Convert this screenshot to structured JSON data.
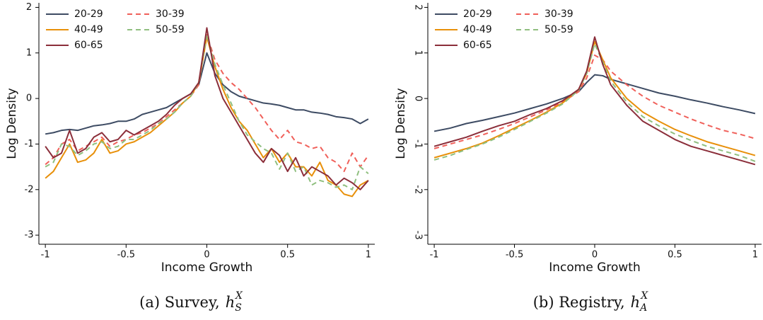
{
  "chart_data": [
    {
      "type": "line",
      "xlabel": "Income Growth",
      "ylabel": "Log Density",
      "caption": "(a) Survey,",
      "caption_math": {
        "base": "h",
        "sub": "S",
        "sup": "X"
      },
      "xlim": [
        -1.04,
        1.04
      ],
      "ylim": [
        -3.2,
        2.1
      ],
      "xticks": [
        -1,
        -0.5,
        0,
        0.5,
        1
      ],
      "yticks": [
        -3,
        -2,
        -1,
        0,
        1,
        2
      ],
      "ytick_label_rotation": 0,
      "legend": "upper left",
      "x": [
        -1,
        -0.95,
        -0.9,
        -0.85,
        -0.8,
        -0.75,
        -0.7,
        -0.65,
        -0.6,
        -0.55,
        -0.5,
        -0.45,
        -0.4,
        -0.35,
        -0.3,
        -0.25,
        -0.2,
        -0.15,
        -0.1,
        -0.05,
        0,
        0.05,
        0.1,
        0.15,
        0.2,
        0.25,
        0.3,
        0.35,
        0.4,
        0.45,
        0.5,
        0.55,
        0.6,
        0.65,
        0.7,
        0.75,
        0.8,
        0.85,
        0.9,
        0.95,
        1
      ],
      "series": [
        {
          "name": "20-29",
          "color": "#3d4b63",
          "dashed": false,
          "values": [
            -0.78,
            -0.75,
            -0.7,
            -0.68,
            -0.7,
            -0.65,
            -0.6,
            -0.58,
            -0.55,
            -0.5,
            -0.5,
            -0.45,
            -0.35,
            -0.3,
            -0.25,
            -0.2,
            -0.1,
            0.0,
            0.1,
            0.3,
            1.0,
            0.55,
            0.3,
            0.15,
            0.05,
            0.0,
            -0.05,
            -0.1,
            -0.12,
            -0.15,
            -0.2,
            -0.25,
            -0.25,
            -0.3,
            -0.32,
            -0.35,
            -0.4,
            -0.42,
            -0.45,
            -0.55,
            -0.45
          ]
        },
        {
          "name": "30-39",
          "color": "#f0605a",
          "dashed": true,
          "values": [
            -1.45,
            -1.3,
            -1.0,
            -0.9,
            -1.15,
            -1.05,
            -0.95,
            -0.85,
            -1.05,
            -0.95,
            -0.9,
            -0.8,
            -0.75,
            -0.65,
            -0.55,
            -0.4,
            -0.25,
            -0.1,
            0.05,
            0.3,
            1.4,
            0.85,
            0.55,
            0.35,
            0.2,
            0.0,
            -0.2,
            -0.45,
            -0.7,
            -0.9,
            -0.7,
            -0.95,
            -1.0,
            -1.1,
            -1.05,
            -1.3,
            -1.4,
            -1.6,
            -1.2,
            -1.5,
            -1.25
          ]
        },
        {
          "name": "40-49",
          "color": "#e8900a",
          "dashed": false,
          "values": [
            -1.75,
            -1.6,
            -1.3,
            -1.0,
            -1.4,
            -1.35,
            -1.2,
            -0.9,
            -1.2,
            -1.15,
            -1.0,
            -0.95,
            -0.85,
            -0.75,
            -0.6,
            -0.45,
            -0.3,
            -0.1,
            0.05,
            0.35,
            1.35,
            0.7,
            0.2,
            -0.2,
            -0.5,
            -0.7,
            -1.0,
            -1.3,
            -1.1,
            -1.4,
            -1.2,
            -1.5,
            -1.5,
            -1.7,
            -1.4,
            -1.8,
            -1.9,
            -2.1,
            -2.15,
            -1.9,
            -1.8
          ]
        },
        {
          "name": "50-59",
          "color": "#8fbf7f",
          "dashed": true,
          "values": [
            -1.5,
            -1.4,
            -1.0,
            -1.05,
            -1.25,
            -1.15,
            -1.0,
            -0.95,
            -1.1,
            -1.05,
            -0.9,
            -0.9,
            -0.8,
            -0.7,
            -0.55,
            -0.45,
            -0.3,
            -0.1,
            0.05,
            0.35,
            1.4,
            0.75,
            0.3,
            -0.1,
            -0.5,
            -0.8,
            -0.95,
            -1.1,
            -1.2,
            -1.55,
            -1.2,
            -1.6,
            -1.5,
            -1.9,
            -1.8,
            -1.85,
            -1.95,
            -1.9,
            -2.0,
            -1.5,
            -1.65
          ]
        },
        {
          "name": "60-65",
          "color": "#8b2e3a",
          "dashed": false,
          "values": [
            -1.05,
            -1.3,
            -1.2,
            -0.7,
            -1.2,
            -1.1,
            -0.85,
            -0.75,
            -0.95,
            -0.9,
            -0.7,
            -0.8,
            -0.7,
            -0.6,
            -0.5,
            -0.35,
            -0.15,
            0.0,
            0.1,
            0.35,
            1.55,
            0.5,
            0.0,
            -0.3,
            -0.6,
            -0.9,
            -1.2,
            -1.4,
            -1.1,
            -1.25,
            -1.6,
            -1.3,
            -1.7,
            -1.5,
            -1.6,
            -1.7,
            -1.9,
            -1.75,
            -1.85,
            -2.0,
            -1.8
          ]
        }
      ]
    },
    {
      "type": "line",
      "xlabel": "Income Growth",
      "ylabel": "Log Density",
      "caption": "(b) Registry,",
      "caption_math": {
        "base": "h",
        "sub": "A",
        "sup": "X"
      },
      "xlim": [
        -1.04,
        1.04
      ],
      "ylim": [
        -3.2,
        2.1
      ],
      "xticks": [
        -1,
        -0.5,
        0,
        0.5,
        1
      ],
      "yticks": [
        -3,
        -2,
        -1,
        0,
        1,
        2
      ],
      "ytick_label_rotation": 90,
      "legend": "upper left",
      "x": [
        -1,
        -0.9,
        -0.8,
        -0.7,
        -0.6,
        -0.5,
        -0.4,
        -0.3,
        -0.2,
        -0.1,
        -0.05,
        0,
        0.05,
        0.1,
        0.2,
        0.3,
        0.4,
        0.5,
        0.6,
        0.7,
        0.8,
        0.9,
        1
      ],
      "series": [
        {
          "name": "20-29",
          "color": "#3d4b63",
          "dashed": false,
          "values": [
            -0.72,
            -0.65,
            -0.55,
            -0.48,
            -0.4,
            -0.32,
            -0.22,
            -0.12,
            0.0,
            0.15,
            0.35,
            0.52,
            0.5,
            0.42,
            0.32,
            0.22,
            0.12,
            0.05,
            -0.03,
            -0.1,
            -0.18,
            -0.25,
            -0.33
          ]
        },
        {
          "name": "30-39",
          "color": "#f0605a",
          "dashed": true,
          "values": [
            -1.1,
            -1.0,
            -0.9,
            -0.8,
            -0.68,
            -0.55,
            -0.4,
            -0.25,
            -0.08,
            0.15,
            0.45,
            0.95,
            0.85,
            0.6,
            0.3,
            0.05,
            -0.15,
            -0.3,
            -0.45,
            -0.58,
            -0.7,
            -0.78,
            -0.88
          ]
        },
        {
          "name": "40-49",
          "color": "#e8900a",
          "dashed": false,
          "values": [
            -1.3,
            -1.2,
            -1.1,
            -0.98,
            -0.82,
            -0.65,
            -0.48,
            -0.3,
            -0.1,
            0.2,
            0.55,
            1.25,
            0.85,
            0.45,
            0.0,
            -0.3,
            -0.5,
            -0.68,
            -0.82,
            -0.95,
            -1.05,
            -1.15,
            -1.25
          ]
        },
        {
          "name": "50-59",
          "color": "#8fbf7f",
          "dashed": true,
          "values": [
            -1.35,
            -1.25,
            -1.12,
            -1.0,
            -0.85,
            -0.68,
            -0.5,
            -0.32,
            -0.12,
            0.18,
            0.55,
            1.2,
            0.8,
            0.38,
            -0.08,
            -0.4,
            -0.6,
            -0.78,
            -0.92,
            -1.05,
            -1.15,
            -1.25,
            -1.38
          ]
        },
        {
          "name": "60-65",
          "color": "#8b2e3a",
          "dashed": false,
          "values": [
            -1.05,
            -0.95,
            -0.85,
            -0.72,
            -0.6,
            -0.5,
            -0.35,
            -0.22,
            -0.05,
            0.2,
            0.6,
            1.35,
            0.75,
            0.3,
            -0.15,
            -0.5,
            -0.7,
            -0.9,
            -1.05,
            -1.15,
            -1.25,
            -1.35,
            -1.45
          ]
        }
      ]
    }
  ]
}
